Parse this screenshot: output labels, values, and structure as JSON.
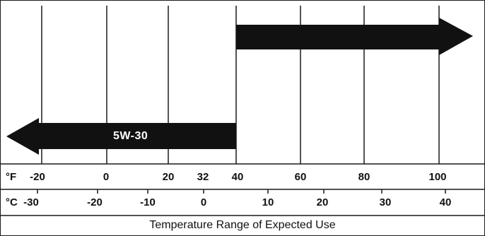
{
  "diagram": {
    "fahrenheit_unit": "°F",
    "celsius_unit": "°C",
    "fahrenheit_ticks": [
      "-20",
      "0",
      "20",
      "32",
      "40",
      "60",
      "80",
      "100"
    ],
    "celsius_ticks": [
      "-30",
      "-20",
      "-10",
      "0",
      "10",
      "20",
      "30",
      "40"
    ],
    "left_arrow_label": "5W-30",
    "caption": "Temperature Range of Expected Use",
    "line_color": "#1a1a1a",
    "arrow_color": "#111111"
  }
}
